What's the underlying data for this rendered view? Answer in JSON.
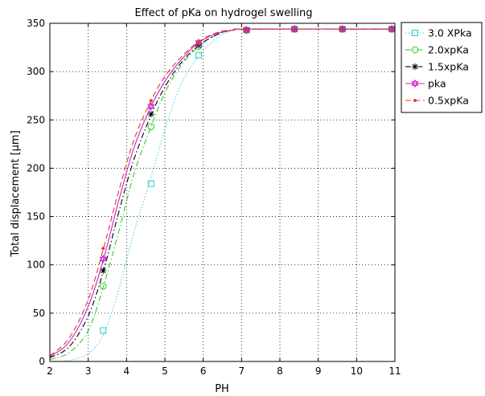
{
  "chart_data": {
    "type": "line",
    "title": "Effect of pKa on hydrogel swelling",
    "xlabel": "PH",
    "ylabel": "Total displacement [µm]",
    "xlim": [
      2,
      11
    ],
    "ylim": [
      0,
      350
    ],
    "xticks": [
      2,
      3,
      4,
      5,
      6,
      7,
      8,
      9,
      10,
      11
    ],
    "yticks": [
      0,
      50,
      100,
      150,
      200,
      250,
      300,
      350
    ],
    "grid": true,
    "legend_position": "outside-right-top",
    "series": [
      {
        "name": "3.0 XPka",
        "color": "#2ec8c8",
        "marker": "square",
        "line_style": "dotted",
        "curve": [
          [
            2,
            0
          ],
          [
            2.5,
            1
          ],
          [
            3,
            8
          ],
          [
            3.4,
            28
          ],
          [
            3.8,
            75
          ],
          [
            4.2,
            135
          ],
          [
            4.6,
            185
          ],
          [
            5,
            240
          ],
          [
            5.4,
            285
          ],
          [
            5.9,
            317
          ],
          [
            6.4,
            336
          ],
          [
            6.8,
            343
          ],
          [
            7.2,
            344
          ],
          [
            11,
            344
          ]
        ],
        "markers": [
          [
            3.39,
            32
          ],
          [
            4.64,
            184
          ],
          [
            5.88,
            317
          ],
          [
            7.13,
            343
          ],
          [
            8.38,
            344
          ],
          [
            9.63,
            344
          ],
          [
            10.92,
            344
          ]
        ]
      },
      {
        "name": "2.0xpKa",
        "color": "#2ecc2e",
        "marker": "circle",
        "line_style": "dashdot",
        "curve": [
          [
            2,
            2
          ],
          [
            2.5,
            9
          ],
          [
            3,
            32
          ],
          [
            3.4,
            78
          ],
          [
            3.8,
            135
          ],
          [
            4.2,
            195
          ],
          [
            4.64,
            243
          ],
          [
            5,
            278
          ],
          [
            5.4,
            305
          ],
          [
            5.88,
            326
          ],
          [
            6.4,
            339
          ],
          [
            6.8,
            343
          ],
          [
            7.2,
            344
          ],
          [
            11,
            344
          ]
        ],
        "markers": [
          [
            3.39,
            78
          ],
          [
            4.64,
            243
          ],
          [
            5.88,
            326
          ],
          [
            7.13,
            343
          ],
          [
            8.38,
            344
          ],
          [
            9.63,
            344
          ],
          [
            10.92,
            344
          ]
        ]
      },
      {
        "name": "1.5xpKa",
        "color": "#000000",
        "marker": "star",
        "line_style": "dashdot",
        "curve": [
          [
            2,
            4
          ],
          [
            2.5,
            15
          ],
          [
            3,
            47
          ],
          [
            3.4,
            94
          ],
          [
            3.8,
            155
          ],
          [
            4.2,
            210
          ],
          [
            4.64,
            255
          ],
          [
            5,
            284
          ],
          [
            5.4,
            308
          ],
          [
            5.88,
            327
          ],
          [
            6.4,
            339
          ],
          [
            6.8,
            343
          ],
          [
            7.2,
            344
          ],
          [
            11,
            344
          ]
        ],
        "markers": [
          [
            3.39,
            94
          ],
          [
            4.64,
            256
          ],
          [
            5.88,
            327
          ],
          [
            7.13,
            343
          ],
          [
            8.38,
            344
          ],
          [
            9.63,
            344
          ],
          [
            10.92,
            344
          ]
        ]
      },
      {
        "name": "pka",
        "color": "#cc22cc",
        "marker": "hexagram",
        "line_style": "solid",
        "curve": [
          [
            2,
            5
          ],
          [
            2.5,
            20
          ],
          [
            3,
            57
          ],
          [
            3.4,
            106
          ],
          [
            3.8,
            167
          ],
          [
            4.2,
            222
          ],
          [
            4.64,
            264
          ],
          [
            5,
            290
          ],
          [
            5.4,
            311
          ],
          [
            5.88,
            330
          ],
          [
            6.4,
            340
          ],
          [
            6.8,
            343
          ],
          [
            7.2,
            344
          ],
          [
            11,
            344
          ]
        ],
        "markers": [
          [
            3.39,
            106
          ],
          [
            4.64,
            264
          ],
          [
            5.88,
            330
          ],
          [
            7.13,
            343
          ],
          [
            8.38,
            344
          ],
          [
            9.63,
            344
          ],
          [
            10.92,
            344
          ]
        ]
      },
      {
        "name": "0.5xpKa",
        "color": "#e8352e",
        "marker": "point",
        "line_style": "dashed",
        "curve": [
          [
            2,
            6
          ],
          [
            2.5,
            24
          ],
          [
            3,
            64
          ],
          [
            3.4,
            117
          ],
          [
            3.8,
            177
          ],
          [
            4.2,
            230
          ],
          [
            4.64,
            270
          ],
          [
            5,
            295
          ],
          [
            5.4,
            314
          ],
          [
            5.88,
            331
          ],
          [
            6.4,
            341
          ],
          [
            6.8,
            343
          ],
          [
            7.2,
            344
          ],
          [
            11,
            344
          ]
        ],
        "markers": [
          [
            3.39,
            117
          ],
          [
            4.64,
            270
          ],
          [
            5.88,
            331
          ],
          [
            7.13,
            343
          ],
          [
            8.38,
            344
          ],
          [
            9.63,
            344
          ],
          [
            10.92,
            344
          ]
        ]
      }
    ]
  }
}
